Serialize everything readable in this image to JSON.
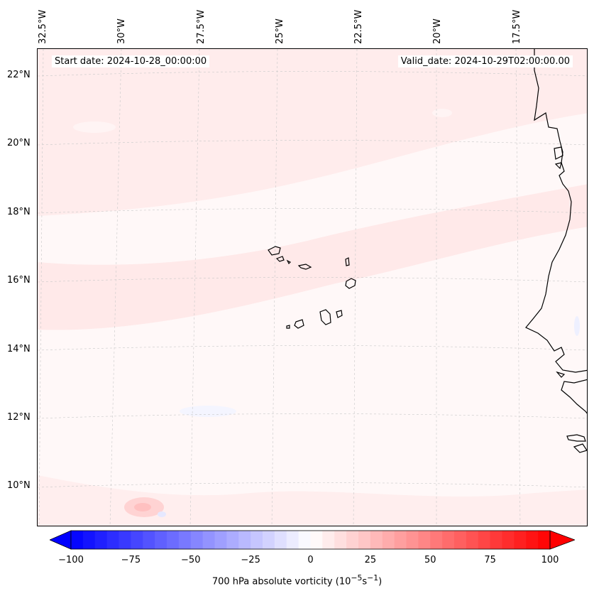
{
  "header": {
    "start_date": "Start date: 2024-10-28_00:00:00",
    "valid_date": "Valid_date: 2024-10-29T02:00:00.00"
  },
  "longitude_labels": [
    "32.5°W",
    "30°W",
    "27.5°W",
    "25°W",
    "22.5°W",
    "20°W",
    "17.5°W"
  ],
  "latitude_labels": [
    "22°N",
    "20°N",
    "18°N",
    "16°N",
    "14°N",
    "12°N",
    "10°N"
  ],
  "colorbar": {
    "label_text": "700 hPa absolute vorticity (10",
    "label_exp1": "−5",
    "label_mid": "s",
    "label_exp2": "−1",
    "label_end": ")",
    "ticks": [
      "−100",
      "−75",
      "−50",
      "−25",
      "0",
      "25",
      "50",
      "75",
      "100"
    ],
    "min": -100,
    "max": 100,
    "colormap": "bwr",
    "extend": "both"
  },
  "colors": {
    "background_field": "#fff8f8",
    "light_band": "#ffe9e9",
    "coastline": "#000000",
    "gridline": "#c8c8c8"
  }
}
